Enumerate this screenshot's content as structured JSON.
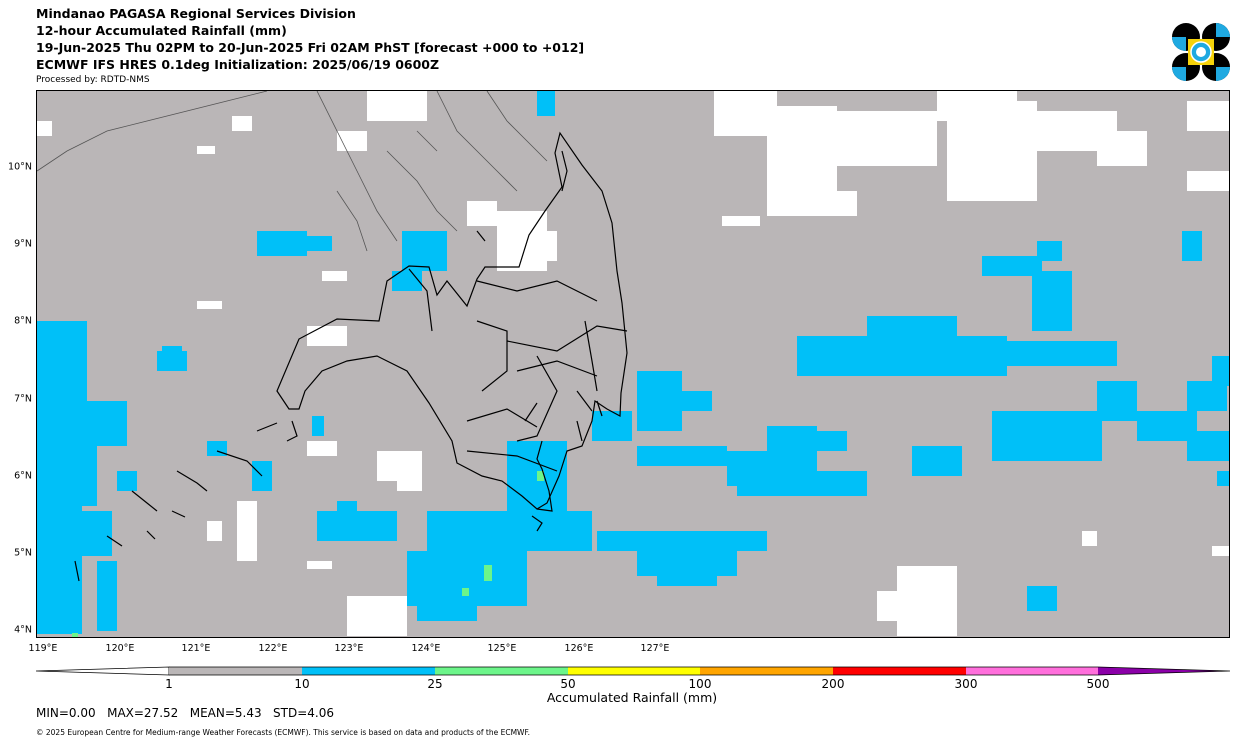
{
  "header": {
    "title_line1": "Mindanao PAGASA Regional Services Division",
    "title_line2": "12-hour Accumulated Rainfall (mm)",
    "title_line3": "19-Jun-2025 Thu 02PM to 20-Jun-2025 Fri 02AM PhST [forecast +000 to +012]",
    "title_line4": "ECMWF IFS HRES 0.1deg Initialization: 2025/06/19 0600Z",
    "processed_by": "Processed by: RDTD-NMS"
  },
  "logo": {
    "icon": "pagasa-logo",
    "colors": [
      "#000000",
      "#1fa9e1",
      "#f5d20a"
    ]
  },
  "map": {
    "lat_labels": [
      "10°N",
      "9°N",
      "8°N",
      "7°N",
      "6°N",
      "5°N",
      "4°N"
    ],
    "lon_labels": [
      "119°E",
      "120°E",
      "121°E",
      "122°E",
      "123°E",
      "124°E",
      "125°E",
      "126°E",
      "127°E"
    ],
    "colors": {
      "background_rain_1_10": "#bab6b7",
      "no_rain": "#ffffff",
      "rain_10_25": "#00c0f8",
      "rain_25_50": "#6cf58a"
    }
  },
  "colorbar": {
    "label": "Accumulated Rainfall (mm)",
    "ticks": [
      "1",
      "10",
      "25",
      "50",
      "100",
      "200",
      "300",
      "500"
    ],
    "bins": [
      {
        "range": "<1",
        "color": "#ffffff"
      },
      {
        "range": "1-10",
        "color": "#bab6b7"
      },
      {
        "range": "10-25",
        "color": "#00c0f8"
      },
      {
        "range": "25-50",
        "color": "#6cf58a"
      },
      {
        "range": "50-100",
        "color": "#ffff00"
      },
      {
        "range": "100-200",
        "color": "#ffa500"
      },
      {
        "range": "200-300",
        "color": "#ff0000"
      },
      {
        "range": "300-500",
        "color": "#ff6fdc"
      },
      {
        "range": ">500",
        "color": "#8b00a8"
      }
    ]
  },
  "stats": "MIN=0.00   MAX=27.52   MEAN=5.43   STD=4.06",
  "copyright": "© 2025 European Centre for Medium-range Weather Forecasts (ECMWF). This service is based on data and products of the ECMWF."
}
